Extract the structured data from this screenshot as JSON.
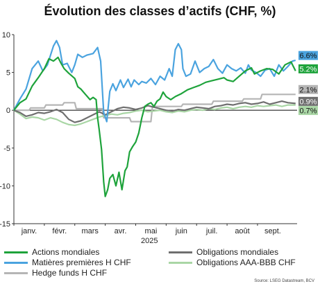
{
  "chart_data": {
    "type": "line",
    "title": "Évolution des classes d’actifs (CHF, %)",
    "ylim": [
      -15,
      10
    ],
    "yticks": [
      10,
      5,
      0,
      -5,
      -10,
      -15
    ],
    "x_months": [
      "janv.",
      "févr.",
      "mars",
      "avr.",
      "mai",
      "juin",
      "juil.",
      "août",
      "sept."
    ],
    "year_label": "2025",
    "grid": false,
    "legend_position": "bottom",
    "source": "Source: LSEG Datastream, BCV",
    "series": [
      {
        "name": "Actions mondiales",
        "color": "#1ea33b",
        "end_label": "5.2%",
        "points": [
          [
            0,
            0
          ],
          [
            0.2,
            1.0
          ],
          [
            0.4,
            1.5
          ],
          [
            0.6,
            3.2
          ],
          [
            0.8,
            4.3
          ],
          [
            1.0,
            5.5
          ],
          [
            1.15,
            6.8
          ],
          [
            1.3,
            6.5
          ],
          [
            1.45,
            7.0
          ],
          [
            1.55,
            6.2
          ],
          [
            1.65,
            5.5
          ],
          [
            1.8,
            4.9
          ],
          [
            2.0,
            4.2
          ],
          [
            2.1,
            3.1
          ],
          [
            2.2,
            2.8
          ],
          [
            2.35,
            2.1
          ],
          [
            2.5,
            1.4
          ],
          [
            2.6,
            1.7
          ],
          [
            2.7,
            1.4
          ],
          [
            2.75,
            -1.0
          ],
          [
            2.8,
            -2.5
          ],
          [
            2.88,
            -5.2
          ],
          [
            2.95,
            -9.5
          ],
          [
            3.0,
            -11.4
          ],
          [
            3.08,
            -10.5
          ],
          [
            3.15,
            -9.0
          ],
          [
            3.25,
            -8.5
          ],
          [
            3.35,
            -10.0
          ],
          [
            3.45,
            -8.2
          ],
          [
            3.55,
            -10.5
          ],
          [
            3.65,
            -8.0
          ],
          [
            3.72,
            -7.5
          ],
          [
            3.8,
            -5.5
          ],
          [
            3.9,
            -4.8
          ],
          [
            4.0,
            -4.2
          ],
          [
            4.1,
            -3.0
          ],
          [
            4.2,
            -1.0
          ],
          [
            4.3,
            0.5
          ],
          [
            4.4,
            0.8
          ],
          [
            4.5,
            1.0
          ],
          [
            4.6,
            0.5
          ],
          [
            4.7,
            1.2
          ],
          [
            4.8,
            1.5
          ],
          [
            4.9,
            2.4
          ],
          [
            5.0,
            1.8
          ],
          [
            5.15,
            1.4
          ],
          [
            5.3,
            1.8
          ],
          [
            5.5,
            2.2
          ],
          [
            5.7,
            2.7
          ],
          [
            5.9,
            3.0
          ],
          [
            6.1,
            3.3
          ],
          [
            6.3,
            3.7
          ],
          [
            6.5,
            3.9
          ],
          [
            6.7,
            4.1
          ],
          [
            6.9,
            4.3
          ],
          [
            7.0,
            4.0
          ],
          [
            7.2,
            3.8
          ],
          [
            7.4,
            4.5
          ],
          [
            7.6,
            5.2
          ],
          [
            7.8,
            5.6
          ],
          [
            7.9,
            4.8
          ],
          [
            8.1,
            5.2
          ],
          [
            8.3,
            5.5
          ],
          [
            8.5,
            5.4
          ],
          [
            8.7,
            4.8
          ],
          [
            8.9,
            6.0
          ],
          [
            9.1,
            6.4
          ],
          [
            9.25,
            5.2
          ]
        ]
      },
      {
        "name": "Matières premières H CHF",
        "color": "#4aa3df",
        "end_label": "6.6%",
        "points": [
          [
            0,
            0
          ],
          [
            0.2,
            1.5
          ],
          [
            0.4,
            2.8
          ],
          [
            0.6,
            5.5
          ],
          [
            0.8,
            6.5
          ],
          [
            0.95,
            5.2
          ],
          [
            1.1,
            6.0
          ],
          [
            1.3,
            8.5
          ],
          [
            1.4,
            9.2
          ],
          [
            1.5,
            8.3
          ],
          [
            1.6,
            6.0
          ],
          [
            1.75,
            6.2
          ],
          [
            1.9,
            5.0
          ],
          [
            2.0,
            6.0
          ],
          [
            2.1,
            7.4
          ],
          [
            2.25,
            7.0
          ],
          [
            2.4,
            7.3
          ],
          [
            2.6,
            7.5
          ],
          [
            2.75,
            8.3
          ],
          [
            2.85,
            6.5
          ],
          [
            2.95,
            -0.3
          ],
          [
            3.05,
            -1.5
          ],
          [
            3.15,
            2.5
          ],
          [
            3.25,
            3.5
          ],
          [
            3.35,
            2.6
          ],
          [
            3.5,
            4.0
          ],
          [
            3.6,
            3.0
          ],
          [
            3.75,
            4.1
          ],
          [
            3.85,
            3.1
          ],
          [
            3.95,
            4.0
          ],
          [
            4.1,
            3.4
          ],
          [
            4.2,
            3.8
          ],
          [
            4.35,
            3.6
          ],
          [
            4.5,
            4.2
          ],
          [
            4.65,
            3.4
          ],
          [
            4.8,
            4.5
          ],
          [
            4.95,
            4.0
          ],
          [
            5.1,
            5.5
          ],
          [
            5.2,
            4.5
          ],
          [
            5.3,
            8.0
          ],
          [
            5.4,
            8.8
          ],
          [
            5.5,
            8.0
          ],
          [
            5.55,
            5.5
          ],
          [
            5.65,
            4.5
          ],
          [
            5.8,
            4.8
          ],
          [
            5.95,
            6.5
          ],
          [
            6.1,
            5.0
          ],
          [
            6.25,
            5.5
          ],
          [
            6.4,
            5.8
          ],
          [
            6.55,
            6.7
          ],
          [
            6.7,
            5.5
          ],
          [
            6.85,
            4.9
          ],
          [
            7.0,
            6.0
          ],
          [
            7.15,
            5.5
          ],
          [
            7.3,
            5.2
          ],
          [
            7.45,
            5.6
          ],
          [
            7.6,
            4.9
          ],
          [
            7.7,
            6.0
          ],
          [
            7.8,
            5.3
          ],
          [
            7.95,
            5.0
          ],
          [
            8.1,
            4.5
          ],
          [
            8.25,
            5.3
          ],
          [
            8.4,
            5.5
          ],
          [
            8.55,
            4.5
          ],
          [
            8.7,
            6.0
          ],
          [
            8.85,
            5.2
          ],
          [
            9.0,
            5.8
          ],
          [
            9.15,
            6.5
          ],
          [
            9.25,
            6.6
          ]
        ]
      },
      {
        "name": "Hedge funds H CHF",
        "color": "#b5b5b5",
        "end_label": "2.1%",
        "points": [
          [
            0,
            0
          ],
          [
            0.5,
            0
          ],
          [
            0.55,
            0.3
          ],
          [
            1.0,
            0.3
          ],
          [
            1.05,
            0.7
          ],
          [
            1.6,
            0.7
          ],
          [
            1.65,
            1.0
          ],
          [
            2.0,
            1.0
          ],
          [
            2.05,
            0.2
          ],
          [
            2.9,
            0.2
          ],
          [
            2.95,
            -1.0
          ],
          [
            3.8,
            -1.0
          ],
          [
            3.85,
            -1.5
          ],
          [
            4.5,
            -1.5
          ],
          [
            4.55,
            0.5
          ],
          [
            5.5,
            0.5
          ],
          [
            5.55,
            0.8
          ],
          [
            6.5,
            0.8
          ],
          [
            6.55,
            1.2
          ],
          [
            7.5,
            1.2
          ],
          [
            7.55,
            1.5
          ],
          [
            8.1,
            1.5
          ],
          [
            8.15,
            2.1
          ],
          [
            9.25,
            2.1
          ]
        ]
      },
      {
        "name": "Obligations mondiales",
        "color": "#6f6f6f",
        "end_label": "0.9%",
        "points": [
          [
            0,
            0
          ],
          [
            0.2,
            -0.3
          ],
          [
            0.4,
            -0.8
          ],
          [
            0.6,
            -0.6
          ],
          [
            0.8,
            -0.3
          ],
          [
            1.0,
            -0.4
          ],
          [
            1.2,
            -0.2
          ],
          [
            1.4,
            0.1
          ],
          [
            1.6,
            -0.3
          ],
          [
            1.8,
            -1.2
          ],
          [
            2.0,
            -1.6
          ],
          [
            2.2,
            -1.4
          ],
          [
            2.4,
            -1.0
          ],
          [
            2.6,
            -0.6
          ],
          [
            2.8,
            -0.2
          ],
          [
            3.0,
            -0.6
          ],
          [
            3.2,
            -0.2
          ],
          [
            3.4,
            0.2
          ],
          [
            3.6,
            0.4
          ],
          [
            3.8,
            0.3
          ],
          [
            4.0,
            0.1
          ],
          [
            4.2,
            0.3
          ],
          [
            4.4,
            0.6
          ],
          [
            4.6,
            0.4
          ],
          [
            4.8,
            0.2
          ],
          [
            5.0,
            0.0
          ],
          [
            5.2,
            -0.1
          ],
          [
            5.4,
            0.1
          ],
          [
            5.6,
            0.0
          ],
          [
            5.8,
            0.2
          ],
          [
            6.0,
            0.4
          ],
          [
            6.2,
            0.3
          ],
          [
            6.4,
            0.2
          ],
          [
            6.6,
            0.5
          ],
          [
            6.8,
            0.6
          ],
          [
            7.0,
            0.8
          ],
          [
            7.2,
            0.7
          ],
          [
            7.4,
            0.9
          ],
          [
            7.6,
            1.0
          ],
          [
            7.8,
            0.8
          ],
          [
            8.0,
            0.9
          ],
          [
            8.2,
            1.1
          ],
          [
            8.4,
            0.8
          ],
          [
            8.6,
            1.0
          ],
          [
            8.8,
            1.2
          ],
          [
            9.0,
            1.0
          ],
          [
            9.25,
            0.9
          ]
        ]
      },
      {
        "name": "Obligations AAA-BBB CHF",
        "color": "#a9d6a5",
        "end_label": "0.7%",
        "points": [
          [
            0,
            0
          ],
          [
            0.2,
            -0.5
          ],
          [
            0.4,
            -1.1
          ],
          [
            0.6,
            -0.9
          ],
          [
            0.8,
            -1.0
          ],
          [
            1.0,
            -1.3
          ],
          [
            1.2,
            -1.0
          ],
          [
            1.4,
            -1.2
          ],
          [
            1.6,
            -1.6
          ],
          [
            1.8,
            -1.9
          ],
          [
            2.0,
            -2.0
          ],
          [
            2.2,
            -1.8
          ],
          [
            2.4,
            -1.5
          ],
          [
            2.6,
            -1.2
          ],
          [
            2.8,
            -0.9
          ],
          [
            3.0,
            -0.7
          ],
          [
            3.2,
            -0.5
          ],
          [
            3.4,
            -0.6
          ],
          [
            3.6,
            -0.4
          ],
          [
            3.8,
            -0.3
          ],
          [
            4.0,
            -0.1
          ],
          [
            4.2,
            0.0
          ],
          [
            4.4,
            -0.2
          ],
          [
            4.6,
            -0.1
          ],
          [
            4.8,
            0.0
          ],
          [
            5.0,
            -0.2
          ],
          [
            5.2,
            -0.3
          ],
          [
            5.4,
            -0.1
          ],
          [
            5.6,
            -0.2
          ],
          [
            5.8,
            0.0
          ],
          [
            6.0,
            0.1
          ],
          [
            6.2,
            0.0
          ],
          [
            6.4,
            0.2
          ],
          [
            6.6,
            0.1
          ],
          [
            6.8,
            0.3
          ],
          [
            7.0,
            0.4
          ],
          [
            7.2,
            0.2
          ],
          [
            7.4,
            0.4
          ],
          [
            7.6,
            0.5
          ],
          [
            7.8,
            0.4
          ],
          [
            8.0,
            0.6
          ],
          [
            8.2,
            0.5
          ],
          [
            8.4,
            0.6
          ],
          [
            8.6,
            0.7
          ],
          [
            8.8,
            0.5
          ],
          [
            9.0,
            0.7
          ],
          [
            9.25,
            0.7
          ]
        ]
      }
    ]
  }
}
